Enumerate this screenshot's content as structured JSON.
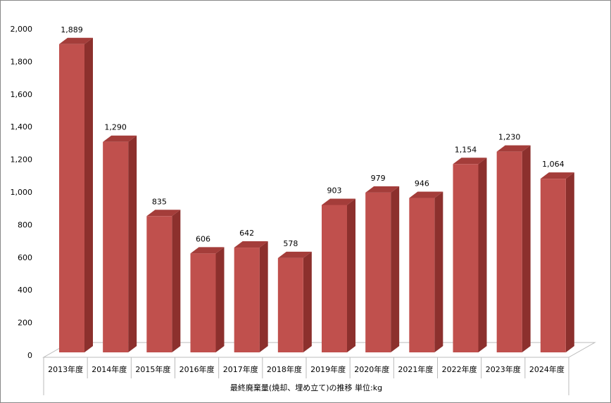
{
  "chart_data": {
    "type": "bar3d",
    "xlabel": "最終廃棄量(焼却、埋め立て)の推移  単位:kg",
    "categories": [
      "2013年度",
      "2014年度",
      "2015年度",
      "2016年度",
      "2017年度",
      "2018年度",
      "2019年度",
      "2020年度",
      "2021年度",
      "2022年度",
      "2023年度",
      "2024年度"
    ],
    "values": [
      1889,
      1290,
      835,
      606,
      642,
      578,
      903,
      979,
      946,
      1154,
      1230,
      1064
    ],
    "value_labels": [
      "1,889",
      "1,290",
      "835",
      "606",
      "642",
      "578",
      "903",
      "979",
      "946",
      "1,154",
      "1,230",
      "1,064"
    ],
    "color": "#c0504d",
    "ylim": [
      0,
      2000
    ],
    "yticks": [
      0,
      200,
      400,
      600,
      800,
      {
        "value": 1000,
        "label": "1,000"
      },
      {
        "value": 1200,
        "label": "1,200"
      },
      {
        "value": 1400,
        "label": "1,400"
      },
      {
        "value": 1600,
        "label": "1,600"
      },
      {
        "value": 1800,
        "label": "1,800"
      },
      {
        "value": 2000,
        "label": "2,000"
      }
    ]
  }
}
